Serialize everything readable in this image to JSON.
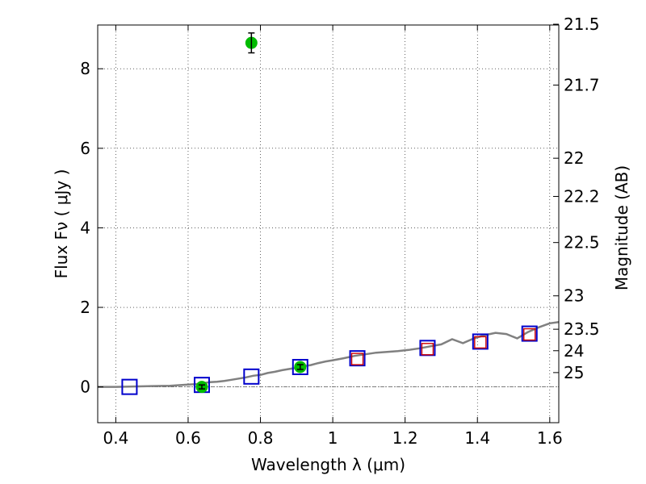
{
  "chart_data": {
    "type": "scatter",
    "title": "",
    "xlabel": "Wavelength  λ (μm)",
    "ylabel": "Flux  Fν  ( μJy )",
    "y2label": "Magnitude (AB)",
    "xlim": [
      0.35,
      1.625
    ],
    "ylim": [
      -0.9,
      9.1
    ],
    "grid": true,
    "x_ticks": [
      0.4,
      0.6,
      0.8,
      1.0,
      1.2,
      1.4,
      1.6
    ],
    "x_tick_labels": [
      "0.4",
      "0.6",
      "0.8",
      "1",
      "1.2",
      "1.4",
      "1.6"
    ],
    "y_ticks": [
      0,
      2,
      4,
      6,
      8
    ],
    "y_tick_labels": [
      "0",
      "2",
      "4",
      "6",
      "8"
    ],
    "y2_ticks": [
      {
        "label": "21.5",
        "flux": 9.12
      },
      {
        "label": "21.7",
        "flux": 7.59
      },
      {
        "label": "22",
        "flux": 5.75
      },
      {
        "label": "22.2",
        "flux": 4.79
      },
      {
        "label": "22.5",
        "flux": 3.63
      },
      {
        "label": "23",
        "flux": 2.29
      },
      {
        "label": "23.5",
        "flux": 1.45
      },
      {
        "label": "24",
        "flux": 0.91
      },
      {
        "label": "25",
        "flux": 0.36
      }
    ],
    "series": [
      {
        "kind": "line",
        "color": "#808080",
        "x": [
          0.35,
          0.4,
          0.45,
          0.5,
          0.55,
          0.6,
          0.62,
          0.64,
          0.66,
          0.68,
          0.7,
          0.72,
          0.74,
          0.76,
          0.78,
          0.8,
          0.82,
          0.84,
          0.86,
          0.88,
          0.9,
          0.92,
          0.94,
          0.96,
          0.98,
          1.0,
          1.03,
          1.06,
          1.09,
          1.12,
          1.15,
          1.18,
          1.21,
          1.24,
          1.27,
          1.3,
          1.33,
          1.36,
          1.39,
          1.42,
          1.45,
          1.48,
          1.51,
          1.54,
          1.57,
          1.6,
          1.625
        ],
        "y": [
          0.0,
          0.0,
          0.01,
          0.02,
          0.03,
          0.06,
          0.07,
          0.09,
          0.12,
          0.13,
          0.15,
          0.18,
          0.21,
          0.24,
          0.28,
          0.3,
          0.35,
          0.38,
          0.42,
          0.45,
          0.48,
          0.52,
          0.55,
          0.6,
          0.64,
          0.67,
          0.72,
          0.78,
          0.82,
          0.86,
          0.88,
          0.9,
          0.93,
          0.97,
          1.02,
          1.07,
          1.2,
          1.1,
          1.22,
          1.3,
          1.36,
          1.33,
          1.22,
          1.38,
          1.5,
          1.6,
          1.63
        ]
      },
      {
        "kind": "marker",
        "marker": "square",
        "color": "#0000cc",
        "x": [
          0.438,
          0.638,
          0.775,
          0.91,
          1.068,
          1.262,
          1.408,
          1.544
        ],
        "y": [
          0.0,
          0.05,
          0.26,
          0.5,
          0.72,
          0.98,
          1.14,
          1.34
        ]
      },
      {
        "kind": "marker",
        "marker": "square",
        "color": "#cc0000",
        "x": [
          1.068,
          1.262,
          1.408,
          1.544
        ],
        "y": [
          0.7,
          0.95,
          1.12,
          1.32
        ]
      },
      {
        "kind": "marker",
        "marker": "circle",
        "color": "#00bb00",
        "x": [
          0.638,
          0.775,
          0.91
        ],
        "y": [
          0.0,
          8.65,
          0.5
        ],
        "yerr": [
          0.05,
          0.25,
          0.06
        ]
      }
    ]
  }
}
